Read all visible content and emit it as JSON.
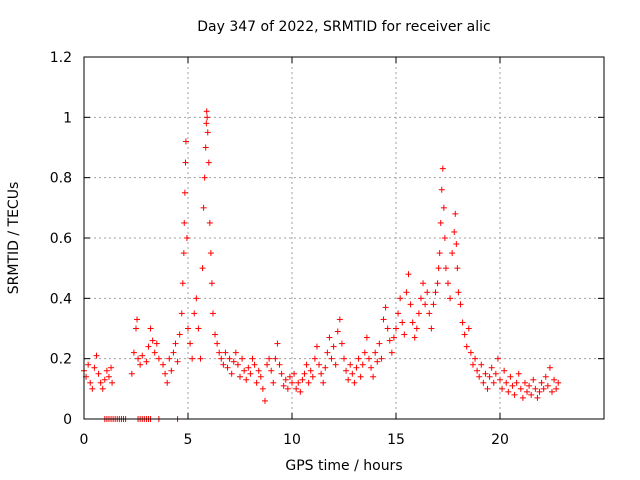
{
  "chart_data": {
    "type": "scatter",
    "title": "Day 347 of 2022, SRMTID for receiver alic",
    "xlabel": "GPS time / hours",
    "ylabel": "SRMTID / TECUs",
    "xlim": [
      0,
      25
    ],
    "ylim": [
      0,
      1.2
    ],
    "xticks": [
      0,
      5,
      10,
      15,
      20
    ],
    "xtick_labels": [
      "0",
      "5",
      "10",
      "15",
      "20"
    ],
    "yticks": [
      0,
      0.2,
      0.4,
      0.6,
      0.8,
      1,
      1.2
    ],
    "ytick_labels": [
      "0",
      "0.2",
      "0.4",
      "0.6",
      "0.8",
      "1",
      "1.2"
    ],
    "grid": true,
    "marker": "+",
    "color": "#ff0000",
    "series": [
      {
        "name": "SRMTID",
        "points": [
          [
            0.0,
            0.16
          ],
          [
            0.1,
            0.14
          ],
          [
            0.2,
            0.18
          ],
          [
            0.3,
            0.12
          ],
          [
            0.4,
            0.1
          ],
          [
            0.5,
            0.17
          ],
          [
            0.6,
            0.21
          ],
          [
            0.7,
            0.15
          ],
          [
            0.8,
            0.12
          ],
          [
            0.9,
            0.1
          ],
          [
            1.0,
            0.13
          ],
          [
            1.1,
            0.16
          ],
          [
            1.2,
            0.14
          ],
          [
            1.3,
            0.17
          ],
          [
            1.35,
            0.12
          ],
          [
            2.3,
            0.15
          ],
          [
            2.4,
            0.22
          ],
          [
            2.5,
            0.3
          ],
          [
            2.55,
            0.33
          ],
          [
            2.6,
            0.2
          ],
          [
            2.7,
            0.18
          ],
          [
            2.8,
            0.21
          ],
          [
            3.0,
            0.19
          ],
          [
            3.1,
            0.24
          ],
          [
            3.2,
            0.3
          ],
          [
            3.3,
            0.26
          ],
          [
            3.4,
            0.22
          ],
          [
            3.5,
            0.25
          ],
          [
            3.6,
            0.2
          ],
          [
            3.8,
            0.18
          ],
          [
            3.9,
            0.15
          ],
          [
            4.0,
            0.12
          ],
          [
            4.1,
            0.2
          ],
          [
            4.2,
            0.16
          ],
          [
            4.3,
            0.22
          ],
          [
            4.4,
            0.25
          ],
          [
            4.5,
            0.19
          ],
          [
            4.6,
            0.28
          ],
          [
            4.7,
            0.35
          ],
          [
            4.75,
            0.45
          ],
          [
            4.8,
            0.55
          ],
          [
            4.82,
            0.65
          ],
          [
            4.85,
            0.75
          ],
          [
            4.88,
            0.85
          ],
          [
            4.9,
            0.92
          ],
          [
            4.95,
            0.6
          ],
          [
            5.0,
            0.3
          ],
          [
            5.1,
            0.25
          ],
          [
            5.2,
            0.2
          ],
          [
            5.3,
            0.35
          ],
          [
            5.4,
            0.4
          ],
          [
            5.5,
            0.3
          ],
          [
            5.6,
            0.2
          ],
          [
            5.7,
            0.5
          ],
          [
            5.75,
            0.7
          ],
          [
            5.8,
            0.8
          ],
          [
            5.85,
            0.9
          ],
          [
            5.88,
            0.98
          ],
          [
            5.9,
            1.02
          ],
          [
            5.92,
            1.0
          ],
          [
            5.95,
            0.95
          ],
          [
            6.0,
            0.85
          ],
          [
            6.05,
            0.65
          ],
          [
            6.1,
            0.55
          ],
          [
            6.15,
            0.45
          ],
          [
            6.2,
            0.35
          ],
          [
            6.3,
            0.28
          ],
          [
            6.4,
            0.25
          ],
          [
            6.5,
            0.22
          ],
          [
            6.6,
            0.2
          ],
          [
            6.7,
            0.18
          ],
          [
            6.8,
            0.22
          ],
          [
            6.9,
            0.17
          ],
          [
            7.0,
            0.2
          ],
          [
            7.1,
            0.15
          ],
          [
            7.2,
            0.19
          ],
          [
            7.3,
            0.22
          ],
          [
            7.4,
            0.18
          ],
          [
            7.5,
            0.14
          ],
          [
            7.6,
            0.2
          ],
          [
            7.7,
            0.16
          ],
          [
            7.8,
            0.13
          ],
          [
            7.9,
            0.17
          ],
          [
            8.0,
            0.15
          ],
          [
            8.1,
            0.2
          ],
          [
            8.2,
            0.18
          ],
          [
            8.3,
            0.12
          ],
          [
            8.4,
            0.16
          ],
          [
            8.5,
            0.14
          ],
          [
            8.6,
            0.1
          ],
          [
            8.7,
            0.06
          ],
          [
            8.8,
            0.18
          ],
          [
            8.9,
            0.2
          ],
          [
            9.0,
            0.16
          ],
          [
            9.1,
            0.12
          ],
          [
            9.2,
            0.2
          ],
          [
            9.3,
            0.25
          ],
          [
            9.4,
            0.18
          ],
          [
            9.5,
            0.15
          ],
          [
            9.6,
            0.11
          ],
          [
            9.7,
            0.13
          ],
          [
            9.8,
            0.1
          ],
          [
            9.9,
            0.14
          ],
          [
            10.0,
            0.12
          ],
          [
            10.1,
            0.15
          ],
          [
            10.2,
            0.1
          ],
          [
            10.3,
            0.12
          ],
          [
            10.4,
            0.09
          ],
          [
            10.5,
            0.13
          ],
          [
            10.6,
            0.15
          ],
          [
            10.7,
            0.18
          ],
          [
            10.8,
            0.12
          ],
          [
            10.9,
            0.16
          ],
          [
            11.0,
            0.14
          ],
          [
            11.1,
            0.2
          ],
          [
            11.2,
            0.24
          ],
          [
            11.3,
            0.18
          ],
          [
            11.4,
            0.15
          ],
          [
            11.5,
            0.12
          ],
          [
            11.6,
            0.17
          ],
          [
            11.7,
            0.22
          ],
          [
            11.8,
            0.27
          ],
          [
            11.9,
            0.2
          ],
          [
            12.0,
            0.24
          ],
          [
            12.1,
            0.18
          ],
          [
            12.2,
            0.29
          ],
          [
            12.3,
            0.33
          ],
          [
            12.4,
            0.25
          ],
          [
            12.5,
            0.2
          ],
          [
            12.6,
            0.16
          ],
          [
            12.7,
            0.13
          ],
          [
            12.8,
            0.18
          ],
          [
            12.9,
            0.15
          ],
          [
            13.0,
            0.12
          ],
          [
            13.1,
            0.17
          ],
          [
            13.2,
            0.2
          ],
          [
            13.3,
            0.14
          ],
          [
            13.4,
            0.18
          ],
          [
            13.5,
            0.22
          ],
          [
            13.6,
            0.27
          ],
          [
            13.7,
            0.2
          ],
          [
            13.8,
            0.17
          ],
          [
            13.9,
            0.14
          ],
          [
            14.0,
            0.22
          ],
          [
            14.1,
            0.19
          ],
          [
            14.2,
            0.25
          ],
          [
            14.3,
            0.2
          ],
          [
            14.4,
            0.33
          ],
          [
            14.5,
            0.37
          ],
          [
            14.6,
            0.3
          ],
          [
            14.7,
            0.26
          ],
          [
            14.8,
            0.22
          ],
          [
            14.9,
            0.27
          ],
          [
            15.0,
            0.3
          ],
          [
            15.1,
            0.35
          ],
          [
            15.2,
            0.4
          ],
          [
            15.3,
            0.32
          ],
          [
            15.4,
            0.28
          ],
          [
            15.5,
            0.42
          ],
          [
            15.6,
            0.48
          ],
          [
            15.7,
            0.38
          ],
          [
            15.8,
            0.32
          ],
          [
            15.9,
            0.27
          ],
          [
            16.0,
            0.3
          ],
          [
            16.1,
            0.35
          ],
          [
            16.2,
            0.4
          ],
          [
            16.3,
            0.45
          ],
          [
            16.4,
            0.38
          ],
          [
            16.5,
            0.42
          ],
          [
            16.6,
            0.35
          ],
          [
            16.7,
            0.3
          ],
          [
            16.8,
            0.38
          ],
          [
            16.9,
            0.42
          ],
          [
            17.0,
            0.45
          ],
          [
            17.05,
            0.5
          ],
          [
            17.1,
            0.55
          ],
          [
            17.15,
            0.65
          ],
          [
            17.2,
            0.76
          ],
          [
            17.25,
            0.83
          ],
          [
            17.3,
            0.7
          ],
          [
            17.35,
            0.6
          ],
          [
            17.4,
            0.5
          ],
          [
            17.5,
            0.45
          ],
          [
            17.6,
            0.4
          ],
          [
            17.7,
            0.55
          ],
          [
            17.8,
            0.62
          ],
          [
            17.85,
            0.68
          ],
          [
            17.9,
            0.58
          ],
          [
            17.95,
            0.5
          ],
          [
            18.0,
            0.42
          ],
          [
            18.1,
            0.38
          ],
          [
            18.2,
            0.32
          ],
          [
            18.3,
            0.28
          ],
          [
            18.4,
            0.24
          ],
          [
            18.5,
            0.3
          ],
          [
            18.6,
            0.22
          ],
          [
            18.7,
            0.18
          ],
          [
            18.8,
            0.2
          ],
          [
            18.9,
            0.16
          ],
          [
            19.0,
            0.14
          ],
          [
            19.1,
            0.18
          ],
          [
            19.2,
            0.12
          ],
          [
            19.3,
            0.15
          ],
          [
            19.4,
            0.1
          ],
          [
            19.5,
            0.14
          ],
          [
            19.6,
            0.17
          ],
          [
            19.7,
            0.12
          ],
          [
            19.8,
            0.15
          ],
          [
            19.9,
            0.2
          ],
          [
            20.0,
            0.13
          ],
          [
            20.1,
            0.1
          ],
          [
            20.2,
            0.16
          ],
          [
            20.3,
            0.12
          ],
          [
            20.4,
            0.09
          ],
          [
            20.5,
            0.14
          ],
          [
            20.6,
            0.11
          ],
          [
            20.7,
            0.08
          ],
          [
            20.8,
            0.12
          ],
          [
            20.9,
            0.15
          ],
          [
            21.0,
            0.1
          ],
          [
            21.1,
            0.07
          ],
          [
            21.2,
            0.12
          ],
          [
            21.3,
            0.09
          ],
          [
            21.4,
            0.11
          ],
          [
            21.5,
            0.08
          ],
          [
            21.6,
            0.13
          ],
          [
            21.7,
            0.1
          ],
          [
            21.8,
            0.07
          ],
          [
            21.9,
            0.09
          ],
          [
            22.0,
            0.12
          ],
          [
            22.1,
            0.1
          ],
          [
            22.2,
            0.14
          ],
          [
            22.3,
            0.11
          ],
          [
            22.4,
            0.17
          ],
          [
            22.5,
            0.09
          ],
          [
            22.6,
            0.13
          ],
          [
            22.7,
            0.1
          ],
          [
            22.8,
            0.12
          ]
        ]
      },
      {
        "name": "zero-values",
        "points": [
          [
            1.0,
            0
          ],
          [
            1.1,
            0
          ],
          [
            1.2,
            0
          ],
          [
            1.3,
            0
          ],
          [
            1.4,
            0
          ],
          [
            1.5,
            0
          ],
          [
            1.6,
            0
          ],
          [
            1.7,
            0
          ],
          [
            1.8,
            0
          ],
          [
            1.9,
            0
          ],
          [
            2.0,
            0
          ],
          [
            2.6,
            0
          ],
          [
            2.7,
            0
          ],
          [
            2.8,
            0
          ],
          [
            2.9,
            0
          ],
          [
            3.0,
            0
          ],
          [
            3.1,
            0
          ],
          [
            3.2,
            0
          ],
          [
            3.6,
            0
          ],
          [
            4.5,
            0
          ]
        ]
      }
    ]
  }
}
